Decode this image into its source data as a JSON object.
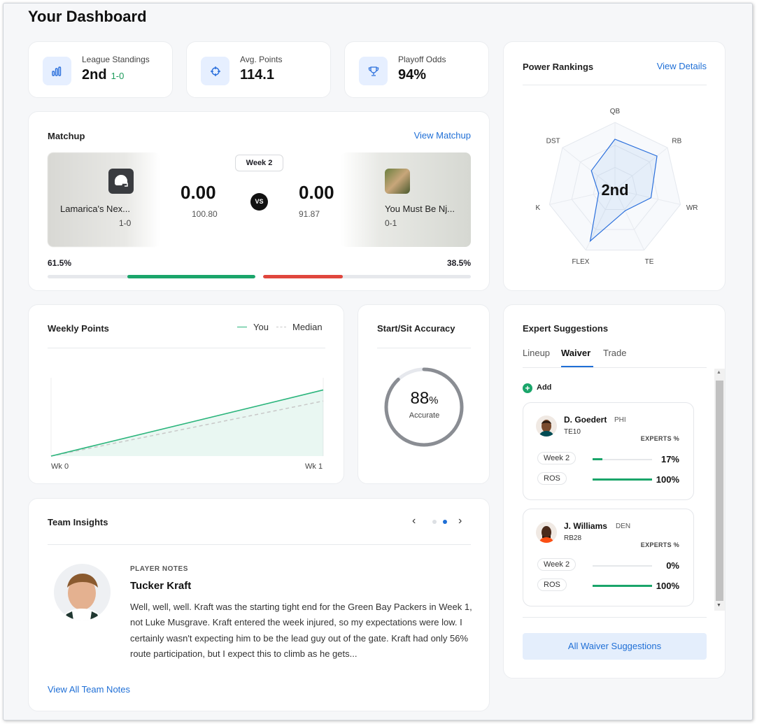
{
  "page_title": "Your Dashboard",
  "stats": [
    {
      "label": "League Standings",
      "value": "2nd",
      "sub": "1-0",
      "icon": "bar-chart-icon"
    },
    {
      "label": "Avg. Points",
      "value": "114.1",
      "icon": "crosshair-icon"
    },
    {
      "label": "Playoff Odds",
      "value": "94%",
      "icon": "trophy-icon"
    }
  ],
  "matchup": {
    "title": "Matchup",
    "link": "View Matchup",
    "week": "Week 2",
    "vs": "VS",
    "team1": {
      "name": "Lamarica's Nex...",
      "record": "1-0",
      "score": "0.00",
      "projected": "100.80",
      "win_pct": "61.5%",
      "win_frac": 0.615
    },
    "team2": {
      "name": "You Must Be Nj...",
      "record": "0-1",
      "score": "0.00",
      "projected": "91.87",
      "win_pct": "38.5%",
      "win_frac": 0.385
    }
  },
  "power_rankings": {
    "title": "Power Rankings",
    "link": "View Details",
    "rank": "2nd",
    "axes": [
      "QB",
      "RB",
      "WR",
      "TE",
      "FLEX",
      "K",
      "DST"
    ],
    "values": [
      0.75,
      0.8,
      0.55,
      0.35,
      0.85,
      0.25,
      0.45
    ]
  },
  "weekly_points": {
    "title": "Weekly Points",
    "legend_you": "You",
    "legend_median": "Median",
    "x_start": "Wk 0",
    "x_end": "Wk 1"
  },
  "chart_data": {
    "type": "line",
    "x": [
      "Wk 0",
      "Wk 1"
    ],
    "series": [
      {
        "name": "You",
        "values": [
          0,
          114.1
        ],
        "color": "#2bb57c"
      },
      {
        "name": "Median",
        "values": [
          0,
          95
        ],
        "color": "#c8c8c8"
      }
    ],
    "xlabel": "",
    "ylabel": ""
  },
  "start_sit": {
    "title": "Start/Sit Accuracy",
    "value": "88",
    "unit": "%",
    "label": "Accurate",
    "fraction": 0.88
  },
  "expert": {
    "title": "Expert Suggestions",
    "tabs": [
      "Lineup",
      "Waiver",
      "Trade"
    ],
    "active_tab": "Waiver",
    "add_label": "Add",
    "experts_label": "EXPERTS %",
    "players": [
      {
        "name": "D. Goedert",
        "team": "PHI",
        "pos": "TE10",
        "rows": [
          {
            "label": "Week 2",
            "pct": "17%",
            "frac": 0.17
          },
          {
            "label": "ROS",
            "pct": "100%",
            "frac": 1.0
          }
        ]
      },
      {
        "name": "J. Williams",
        "team": "DEN",
        "pos": "RB28",
        "rows": [
          {
            "label": "Week 2",
            "pct": "0%",
            "frac": 0.0
          },
          {
            "label": "ROS",
            "pct": "100%",
            "frac": 1.0
          }
        ]
      }
    ],
    "button": "All Waiver Suggestions"
  },
  "insights": {
    "title": "Team Insights",
    "category": "PLAYER NOTES",
    "player": "Tucker Kraft",
    "text": "Well, well, well. Kraft was the starting tight end for the Green Bay Packers in Week 1, not Luke Musgrave. Kraft entered the week injured, so my expectations were low. I certainly wasn't expecting him to be the lead guy out of the gate. Kraft had only 56% route participation, but I expect this to climb as he gets...",
    "link": "View All Team Notes"
  },
  "colors": {
    "accent": "#1f6fd6",
    "green": "#1aa56a",
    "red": "#e0463d"
  }
}
